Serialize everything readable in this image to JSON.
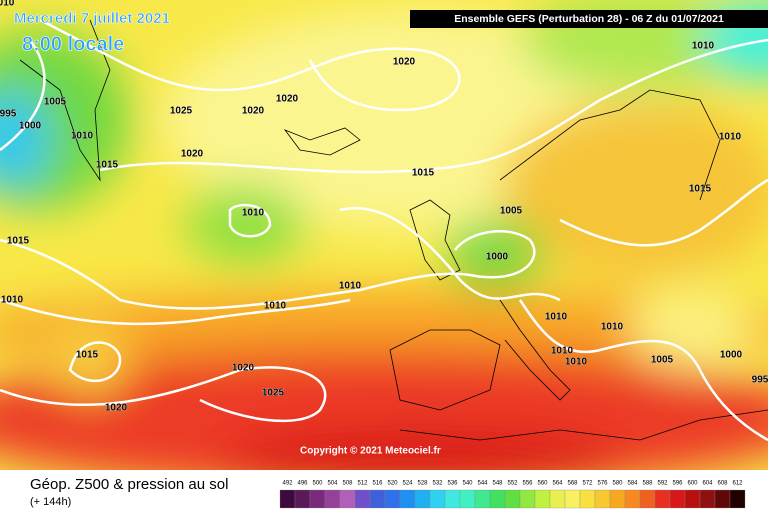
{
  "header": {
    "date": "Mercredi 7 juillet 2021",
    "time": "8:00 locale",
    "run": "Ensemble GEFS  (Perturbation 28)  -  06 Z du 01/07/2021"
  },
  "isobar_labels": [
    "010",
    1005,
    995,
    1000,
    1010,
    1015,
    1025,
    1020,
    1020,
    1020,
    1020,
    1015,
    1010,
    1010,
    1015,
    1005,
    1010,
    1000,
    1015,
    1010,
    1010,
    1010,
    1010,
    1010,
    1010,
    1010,
    1005,
    1000,
    995,
    1015,
    1020,
    1025,
    1020
  ],
  "copyright": "Copyright © 2021 Meteociel.fr",
  "footer": {
    "title": "Géop. Z500 & pression au sol",
    "lead": "(+ 144h)"
  },
  "scale": {
    "labels": [
      492,
      496,
      500,
      504,
      508,
      512,
      516,
      520,
      524,
      528,
      532,
      536,
      540,
      544,
      548,
      552,
      556,
      560,
      564,
      568,
      572,
      576,
      580,
      584,
      588,
      592,
      596,
      600,
      604,
      608,
      612
    ],
    "colors": [
      "#3c0a3c",
      "#5a1a5a",
      "#7a2a7a",
      "#96409a",
      "#b060b8",
      "#7050c8",
      "#4060d8",
      "#3070e8",
      "#2090f0",
      "#20b0f0",
      "#30d0f0",
      "#40e8e0",
      "#40f0c0",
      "#40e890",
      "#40e060",
      "#60e040",
      "#90e840",
      "#c0f040",
      "#e8f050",
      "#f8f060",
      "#f8e040",
      "#f8c830",
      "#f8a820",
      "#f88820",
      "#f06020",
      "#e83020",
      "#d81818",
      "#b81010",
      "#901010",
      "#600808",
      "#200000"
    ]
  }
}
